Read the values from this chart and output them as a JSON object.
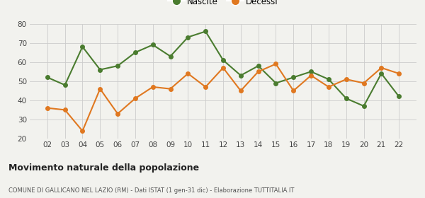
{
  "years": [
    2,
    3,
    4,
    5,
    6,
    7,
    8,
    9,
    10,
    11,
    12,
    13,
    14,
    15,
    16,
    17,
    18,
    19,
    20,
    21,
    22
  ],
  "nascite": [
    52,
    48,
    68,
    56,
    58,
    65,
    69,
    63,
    73,
    76,
    61,
    53,
    58,
    49,
    52,
    55,
    51,
    41,
    37,
    54,
    42
  ],
  "decessi": [
    36,
    35,
    24,
    46,
    33,
    41,
    47,
    46,
    54,
    47,
    57,
    45,
    55,
    59,
    45,
    53,
    47,
    51,
    49,
    57,
    54
  ],
  "nascite_color": "#4a7c2f",
  "decessi_color": "#e07820",
  "background_color": "#f2f2ee",
  "grid_color": "#cccccc",
  "title": "Movimento naturale della popolazione",
  "subtitle": "COMUNE DI GALLICANO NEL LAZIO (RM) - Dati ISTAT (1 gen-31 dic) - Elaborazione TUTTITALIA.IT",
  "ylim": [
    20,
    80
  ],
  "yticks": [
    20,
    30,
    40,
    50,
    60,
    70,
    80
  ],
  "legend_nascite": "Nascite",
  "legend_decessi": "Decessi",
  "marker_size": 4,
  "line_width": 1.5
}
